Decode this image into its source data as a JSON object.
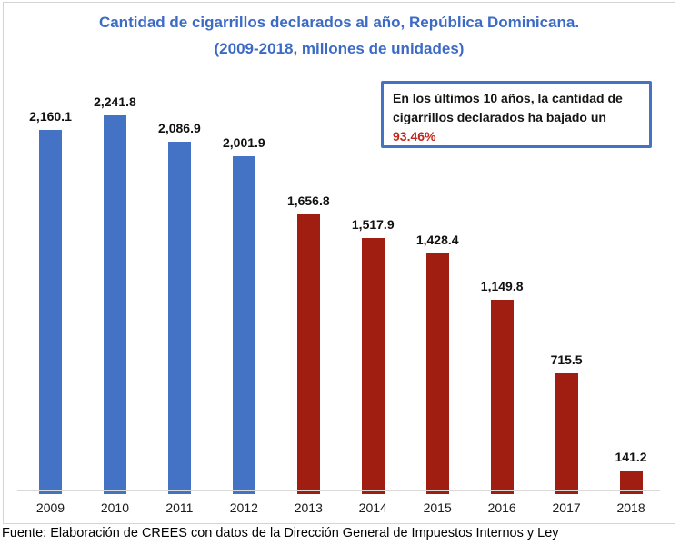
{
  "title": {
    "line1": "Cantidad de cigarrillos declarados al año, República Dominicana.",
    "line2": "(2009-2018, millones de unidades)"
  },
  "annotation": {
    "line1": "En los últimos 10 años, la cantidad de",
    "line2": "cigarrillos declarados ha bajado un",
    "highlight": "93.46%"
  },
  "footer": "Fuente: Elaboración de CREES con datos de la Dirección General de Impuestos Internos y Ley",
  "colors": {
    "title_blue": "#3c6bc6",
    "bar_blue": "#4472c4",
    "bar_red": "#a01d11",
    "highlight_red": "#c1271b",
    "annotation_border": "#4472c4",
    "axis_line": "#d9d9d9",
    "frame_border": "#d4d4d4"
  },
  "chart_data": {
    "type": "bar",
    "title": "Cantidad de cigarrillos declarados al año, República Dominicana. (2009-2018, millones de unidades)",
    "categories": [
      "2009",
      "2010",
      "2011",
      "2012",
      "2013",
      "2014",
      "2015",
      "2016",
      "2017",
      "2018"
    ],
    "values": [
      2160.1,
      2241.8,
      2086.9,
      2001.9,
      1656.8,
      1517.9,
      1428.4,
      1149.8,
      715.5,
      141.2
    ],
    "labels": [
      "2,160.1",
      "2,241.8",
      "2,086.9",
      "2,001.9",
      "1,656.8",
      "1,517.9",
      "1,428.4",
      "1,149.8",
      "715.5",
      "141.2"
    ],
    "bar_colors": [
      "#4472c4",
      "#4472c4",
      "#4472c4",
      "#4472c4",
      "#a01d11",
      "#a01d11",
      "#a01d11",
      "#a01d11",
      "#a01d11",
      "#a01d11"
    ],
    "xlabel": "",
    "ylabel": "",
    "ylim": [
      0,
      2400
    ],
    "grid": false,
    "legend": "none",
    "data_labels": true,
    "annotation": "En los últimos 10 años, la cantidad de cigarrillos declarados ha bajado un 93.46%"
  }
}
